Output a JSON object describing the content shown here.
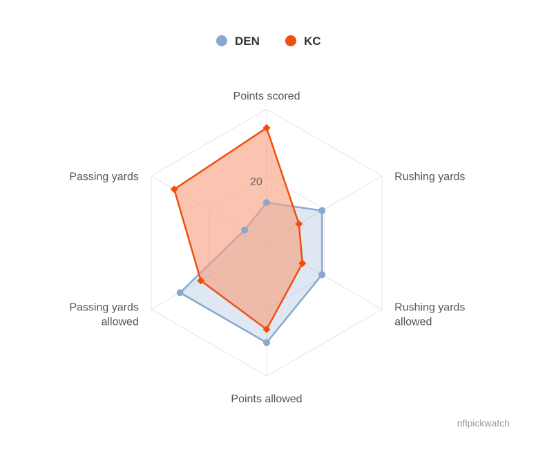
{
  "chart_data": {
    "type": "radar",
    "axes": [
      "Points scored",
      "Rushing yards",
      "Rushing yards allowed",
      "Points allowed",
      "Passing yards allowed",
      "Passing yards"
    ],
    "axis_label_lines": [
      [
        "Points scored"
      ],
      [
        "Rushing yards"
      ],
      [
        "Rushing yards",
        "allowed"
      ],
      [
        "Points allowed"
      ],
      [
        "Passing yards",
        "allowed"
      ],
      [
        "Passing yards"
      ]
    ],
    "max": 50,
    "tick_value": 20,
    "tick_label": "20",
    "grid": true,
    "legend_position": "top",
    "series": [
      {
        "name": "DEN",
        "color": "#87A9CF",
        "fill": "rgba(135,169,207,0.28)",
        "marker": "circle",
        "values": [
          15,
          24,
          24,
          37.5,
          37.5,
          9.5
        ]
      },
      {
        "name": "KC",
        "color": "#F04E0D",
        "fill": "rgba(248,160,128,0.62)",
        "marker": "diamond",
        "values": [
          43,
          14,
          15.5,
          32.5,
          28.5,
          40
        ]
      }
    ]
  },
  "credit": "nflpickwatch"
}
